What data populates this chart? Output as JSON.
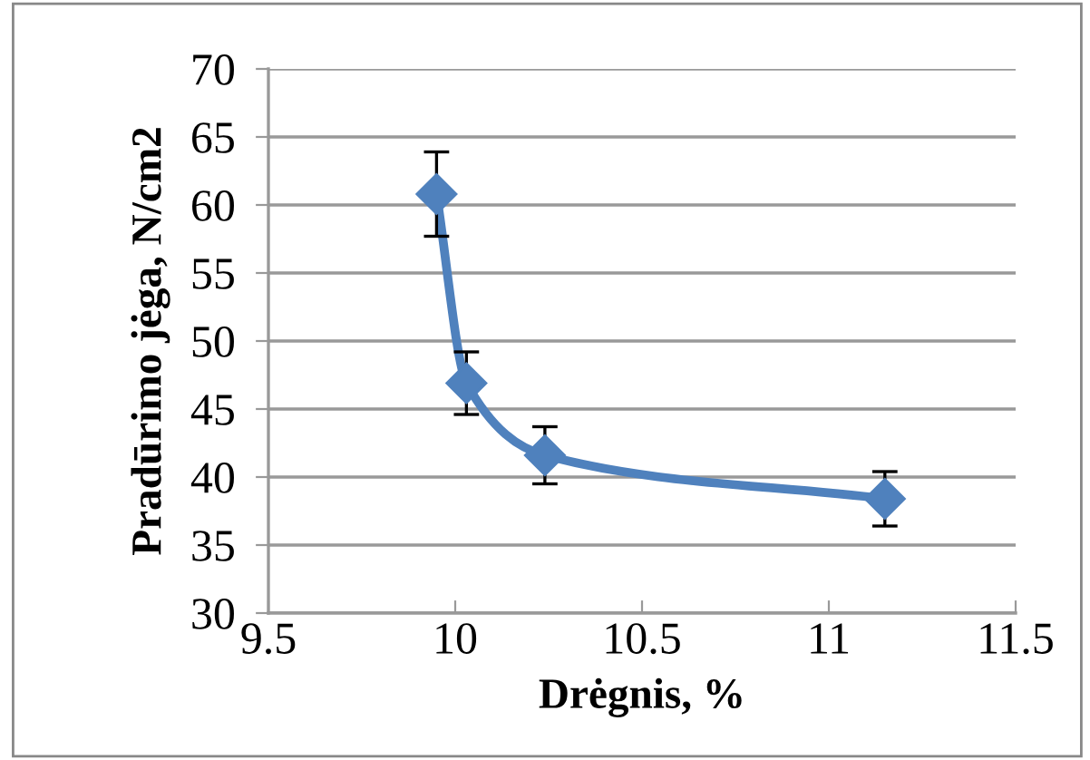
{
  "chart_data": {
    "type": "line",
    "xlabel": "Drėgnis, %",
    "ylabel": "Pradūrimo jėga, N/cm2",
    "x": [
      9.95,
      10.03,
      10.24,
      11.15
    ],
    "series": [
      {
        "color": "#4f81bd",
        "values": [
          60.8,
          46.9,
          41.6,
          38.4
        ],
        "errors": [
          3.1,
          2.3,
          2.1,
          2.0
        ]
      }
    ],
    "xlim": [
      9.5,
      11.5
    ],
    "xticks": [
      9.5,
      10,
      10.5,
      11,
      11.5
    ],
    "ylim": [
      30,
      70
    ],
    "yticks": [
      30,
      35,
      40,
      45,
      50,
      55,
      60,
      65,
      70
    ],
    "grid": "y",
    "marker": "diamond",
    "line_style": "solid",
    "legend": false
  }
}
